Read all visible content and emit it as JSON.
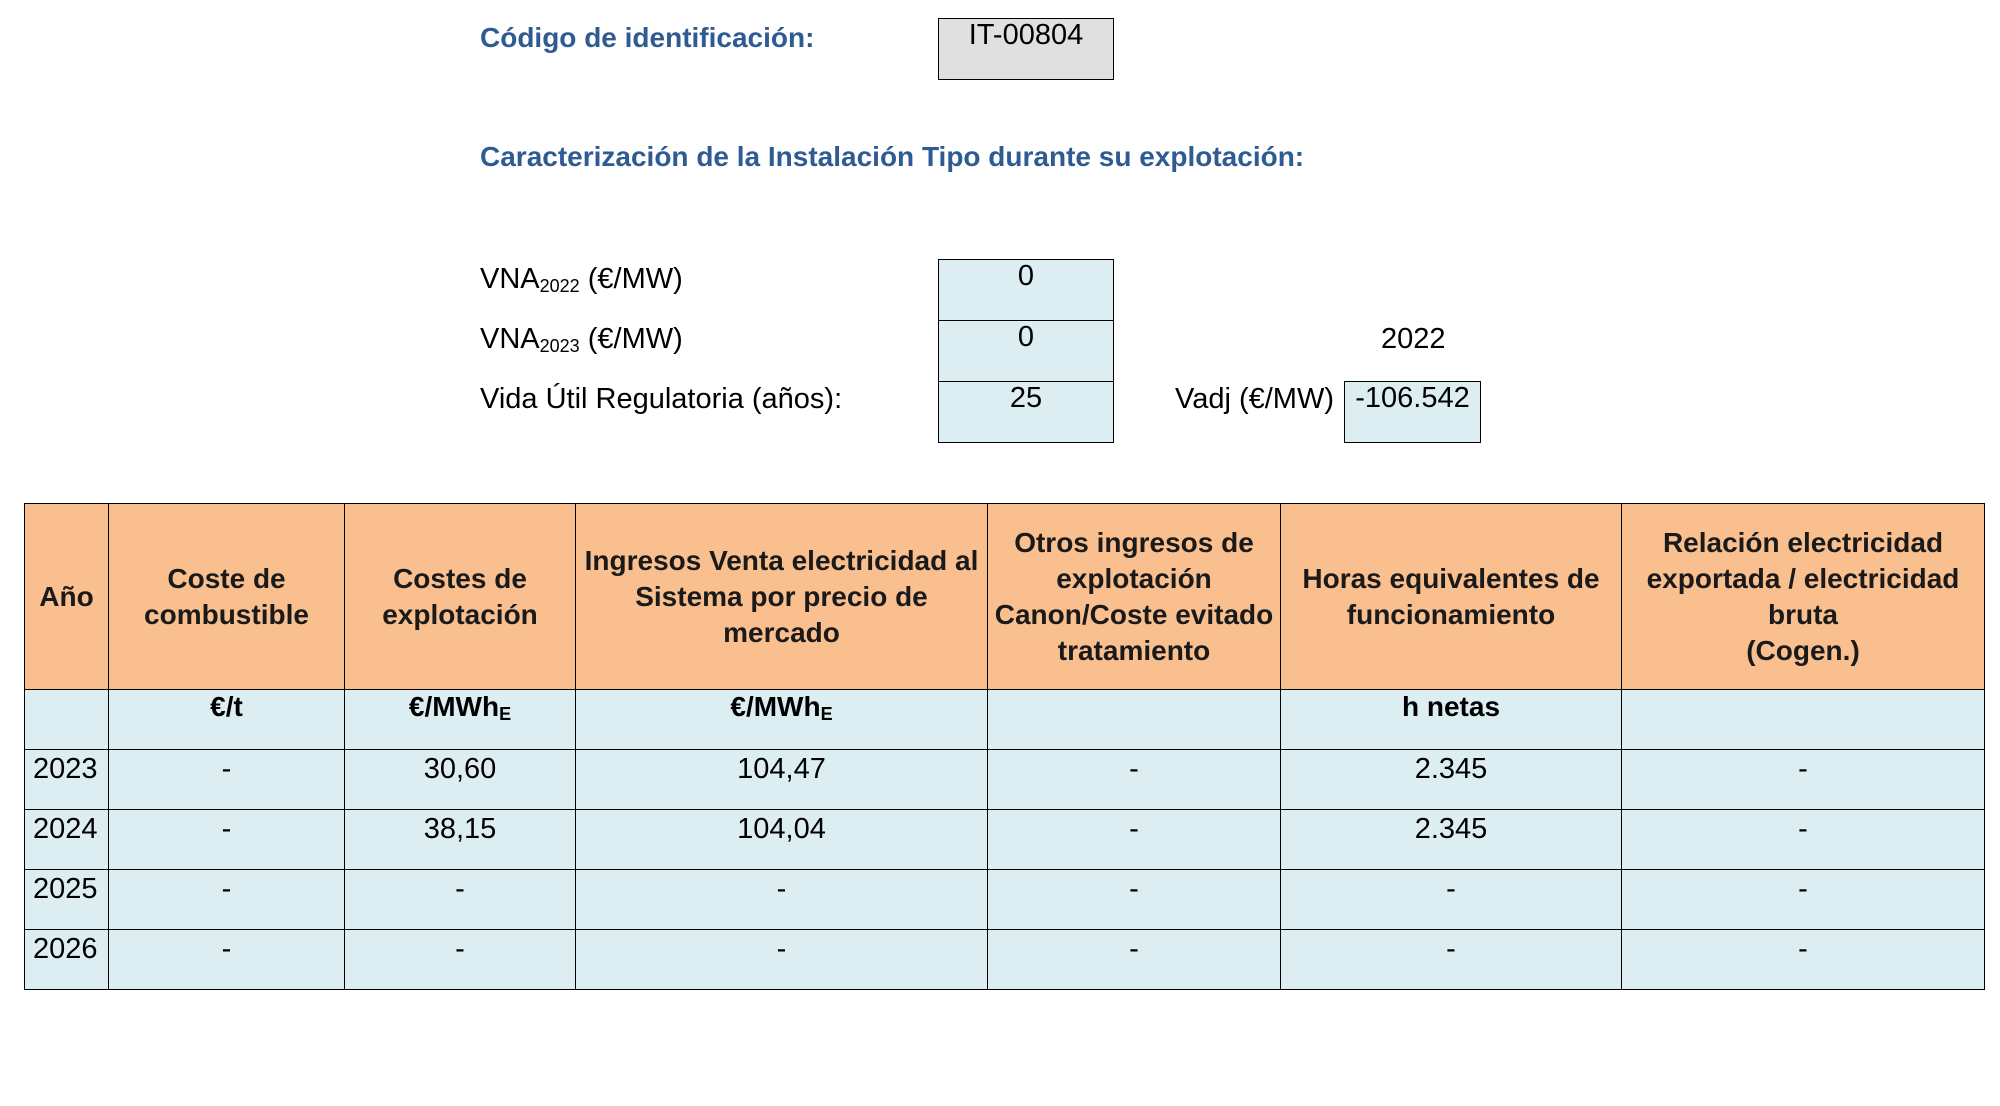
{
  "header": {
    "id_label": "Código de identificación:",
    "id_value": "IT-00804",
    "section_title": "Caracterización de la Instalación Tipo durante su explotación:"
  },
  "params": {
    "vna2022": {
      "prefix": "VNA",
      "sub": "2022",
      "suffix": " (€/MW)",
      "value": "0"
    },
    "vna2023": {
      "prefix": "VNA",
      "sub": "2023",
      "suffix": " (€/MW)",
      "value": "0"
    },
    "vida_label": "Vida Útil Regulatoria (años):",
    "vida_value": "25",
    "year_label": "2022",
    "vadj_label": "Vadj (€/MW)",
    "vadj_value": "-106.542"
  },
  "table": {
    "headers": [
      "Año",
      "Coste de combustible",
      "Costes de explotación",
      "Ingresos Venta electricidad al Sistema por precio de mercado",
      "Otros ingresos de explotación Canon/Coste evitado tratamiento",
      "Horas equivalentes de funcionamiento",
      "Relación electricidad exportada / electricidad bruta\n(Cogen.)"
    ],
    "units": [
      {
        "main": "",
        "sub": ""
      },
      {
        "main": "€/t",
        "sub": ""
      },
      {
        "main": "€/MWh",
        "sub": "E"
      },
      {
        "main": "€/MWh",
        "sub": "E"
      },
      {
        "main": "",
        "sub": ""
      },
      {
        "main": "h netas",
        "sub": ""
      },
      {
        "main": "",
        "sub": ""
      }
    ],
    "rows": [
      [
        "2023",
        "-",
        "30,60",
        "104,47",
        "-",
        "2.345",
        "-"
      ],
      [
        "2024",
        "-",
        "38,15",
        "104,04",
        "-",
        "2.345",
        "-"
      ],
      [
        "2025",
        "-",
        "-",
        "-",
        "-",
        "-",
        "-"
      ],
      [
        "2026",
        "-",
        "-",
        "-",
        "-",
        "-",
        "-"
      ]
    ]
  },
  "colors": {
    "title_blue": "#2f5b93",
    "header_orange": "#f9bf8f",
    "cell_cyan": "#ddeef3",
    "id_box_grey": "#e0e0e0"
  }
}
